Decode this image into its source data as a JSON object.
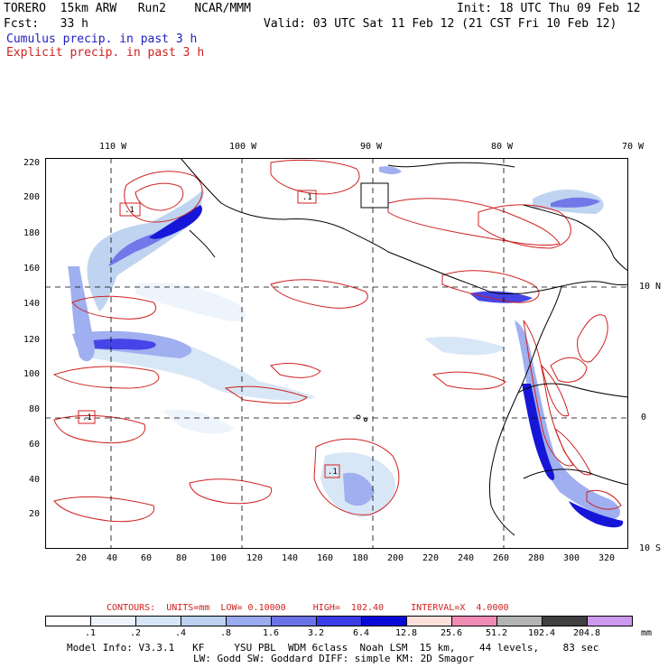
{
  "header": {
    "model": "TORERO  15km ARW   Run2    NCAR/MMM",
    "fcst": "Fcst:   33 h",
    "init": "Init: 18 UTC Thu 09 Feb 12",
    "valid": "Valid: 03 UTC Sat 11 Feb 12 (21 CST Fri 10 Feb 12)",
    "cumulus": "Cumulus precip. in past 3 h",
    "explicit": "Explicit precip. in past 3 h"
  },
  "axes": {
    "lon_labels": [
      "110 W",
      "100 W",
      "90 W",
      "80 W",
      "70 W"
    ],
    "lat_labels": [
      "10 N",
      "0",
      "10 S"
    ],
    "x_ticks": [
      "20",
      "40",
      "60",
      "80",
      "100",
      "120",
      "140",
      "160",
      "180",
      "200",
      "220",
      "240",
      "260",
      "280",
      "300",
      "320"
    ],
    "y_ticks": [
      "220",
      "200",
      "180",
      "160",
      "140",
      "120",
      "100",
      "80",
      "60",
      "40",
      "20"
    ]
  },
  "map_labels": {
    "box_labels": [
      ".1",
      ".1",
      ".1",
      ".1"
    ]
  },
  "contour_info": {
    "label": "CONTOURS:  UNITS=mm  LOW= 0.10000     HIGH=  102.40     INTERVAL=X  4.0000"
  },
  "colorbar": {
    "colors": [
      "#ffffff",
      "#eef4fb",
      "#d6e6f6",
      "#bcd2f0",
      "#9aabef",
      "#6a72e8",
      "#3c3ce6",
      "#0a0ad8",
      "#fce0dc",
      "#f08cb4",
      "#b4b4b4",
      "#404040",
      "#cc99ee"
    ],
    "labels": [
      ".1",
      ".2",
      ".4",
      ".8",
      "1.6",
      "3.2",
      "6.4",
      "12.8",
      "25.6",
      "51.2",
      "102.4",
      "204.8"
    ],
    "units": "mm"
  },
  "footer": {
    "line1": "Model Info: V3.3.1   KF     YSU PBL  WDM 6class  Noah LSM  15 km,    44 levels,    83 sec",
    "line2": "LW: Godd SW: Goddard DIFF: simple KM: 2D Smagor"
  },
  "colors": {
    "cumulus_blue": "#2020c0",
    "explicit_red": "#d02020",
    "coastline": "#000000"
  }
}
